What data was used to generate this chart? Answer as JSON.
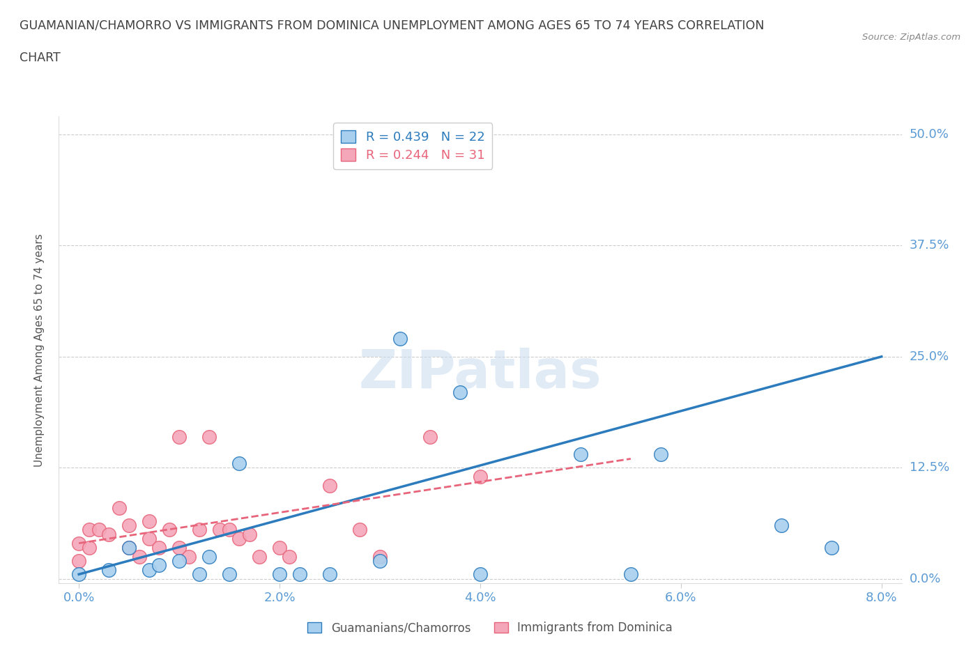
{
  "title_line1": "GUAMANIAN/CHAMORRO VS IMMIGRANTS FROM DOMINICA UNEMPLOYMENT AMONG AGES 65 TO 74 YEARS CORRELATION",
  "title_line2": "CHART",
  "source": "Source: ZipAtlas.com",
  "xlabel_ticks": [
    "0.0%",
    "2.0%",
    "4.0%",
    "6.0%",
    "8.0%"
  ],
  "xlabel_tick_vals": [
    0.0,
    0.02,
    0.04,
    0.06,
    0.08
  ],
  "ylabel_ticks": [
    "0.0%",
    "12.5%",
    "25.0%",
    "37.5%",
    "50.0%"
  ],
  "ylabel_tick_vals": [
    0.0,
    0.125,
    0.25,
    0.375,
    0.5
  ],
  "ylabel": "Unemployment Among Ages 65 to 74 years",
  "xlim": [
    -0.002,
    0.082
  ],
  "ylim": [
    -0.005,
    0.52
  ],
  "blue_R": 0.439,
  "blue_N": 22,
  "pink_R": 0.244,
  "pink_N": 31,
  "legend_label_blue": "Guamanians/Chamorros",
  "legend_label_pink": "Immigrants from Dominica",
  "blue_color": "#A8D0EE",
  "pink_color": "#F4A7B9",
  "blue_line_color": "#2B7BBD",
  "pink_line_color": "#E8647A",
  "title_color": "#404040",
  "axis_label_color": "#5B9BD5",
  "source_color": "#888888",
  "background_color": "#FFFFFF",
  "watermark_text": "ZIPatlas",
  "blue_x": [
    0.0,
    0.003,
    0.005,
    0.007,
    0.008,
    0.01,
    0.012,
    0.013,
    0.015,
    0.016,
    0.02,
    0.022,
    0.025,
    0.03,
    0.032,
    0.038,
    0.04,
    0.05,
    0.055,
    0.058,
    0.07,
    0.075
  ],
  "blue_y": [
    0.005,
    0.01,
    0.035,
    0.01,
    0.015,
    0.02,
    0.005,
    0.025,
    0.005,
    0.13,
    0.005,
    0.005,
    0.005,
    0.02,
    0.27,
    0.21,
    0.005,
    0.14,
    0.005,
    0.14,
    0.06,
    0.035
  ],
  "pink_x": [
    0.0,
    0.0,
    0.001,
    0.001,
    0.002,
    0.003,
    0.004,
    0.005,
    0.005,
    0.006,
    0.007,
    0.007,
    0.008,
    0.009,
    0.01,
    0.01,
    0.011,
    0.012,
    0.013,
    0.014,
    0.015,
    0.016,
    0.017,
    0.018,
    0.02,
    0.021,
    0.025,
    0.028,
    0.03,
    0.035,
    0.04
  ],
  "pink_y": [
    0.02,
    0.04,
    0.055,
    0.035,
    0.055,
    0.05,
    0.08,
    0.035,
    0.06,
    0.025,
    0.045,
    0.065,
    0.035,
    0.055,
    0.035,
    0.16,
    0.025,
    0.055,
    0.16,
    0.055,
    0.055,
    0.045,
    0.05,
    0.025,
    0.035,
    0.025,
    0.105,
    0.055,
    0.025,
    0.16,
    0.115
  ],
  "blue_line_x": [
    0.0,
    0.08
  ],
  "blue_line_y": [
    0.005,
    0.25
  ],
  "pink_line_x": [
    0.0,
    0.055
  ],
  "pink_line_y": [
    0.04,
    0.135
  ]
}
